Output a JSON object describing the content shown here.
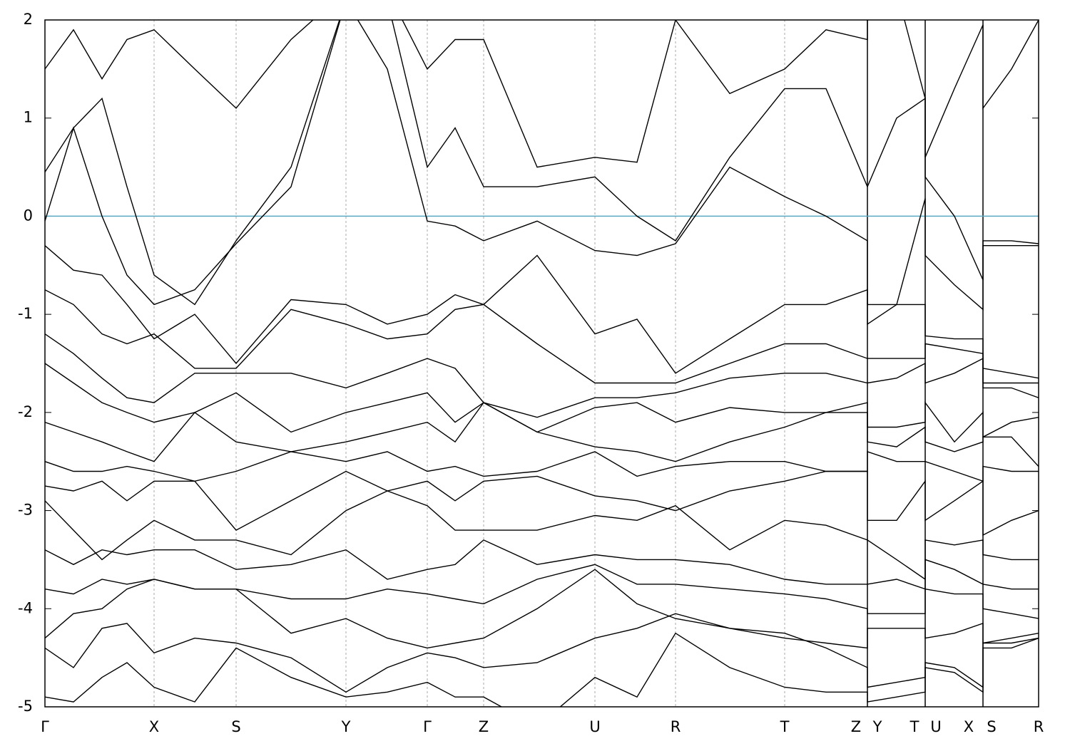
{
  "chart_data": {
    "type": "band-structure",
    "color": "#000000",
    "xlim": [
      0,
      1393
    ],
    "ylim": [
      -5,
      2
    ],
    "yticks": [
      -5,
      -4,
      -3,
      -2,
      -1,
      0,
      1,
      2
    ],
    "xticks": [
      {
        "value": 0,
        "label": "Γ"
      },
      {
        "value": 153,
        "label": "X"
      },
      {
        "value": 268,
        "label": "S"
      },
      {
        "value": 422,
        "label": "Y"
      },
      {
        "value": 536,
        "label": "Γ"
      },
      {
        "value": 615,
        "label": "Z"
      },
      {
        "value": 771,
        "label": "U"
      },
      {
        "value": 884,
        "label": "R"
      },
      {
        "value": 1037,
        "label": "T"
      },
      {
        "value": 1137,
        "label": "Z"
      },
      {
        "value": 1167,
        "label": "Y"
      },
      {
        "value": 1219,
        "label": "T"
      },
      {
        "value": 1249,
        "label": "U"
      },
      {
        "value": 1295,
        "label": "X"
      },
      {
        "value": 1327,
        "label": "S"
      },
      {
        "value": 1393,
        "label": "R"
      }
    ],
    "grid_lines": [
      153,
      268,
      422,
      536,
      615,
      771,
      884,
      1037
    ],
    "breaks": [
      1153,
      1234,
      1315
    ],
    "hline": {
      "value": 0,
      "color": "#5aaac4"
    },
    "x": [
      0,
      40,
      80,
      115,
      153,
      210,
      268,
      345,
      422,
      480,
      536,
      575,
      615,
      690,
      771,
      830,
      884,
      960,
      1037,
      1095,
      1153,
      1153,
      1194,
      1234,
      1234,
      1275,
      1315,
      1315,
      1355,
      1393
    ],
    "series": [
      {
        "values": [
          1.5,
          1.9,
          1.4,
          1.8,
          1.9,
          1.5,
          1.1,
          1.8,
          2.3,
          2.3,
          1.5,
          1.8,
          1.8,
          0.5,
          0.6,
          0.55,
          2.0,
          1.25,
          1.5,
          1.9,
          1.8,
          2.3,
          2.3,
          1.2,
          0.6,
          1.3,
          1.95,
          1.1,
          1.5,
          2.0
        ]
      },
      {
        "values": [
          0.45,
          0.9,
          1.2,
          0.3,
          -0.6,
          -0.9,
          -0.25,
          0.5,
          2.2,
          2.2,
          0.5,
          0.9,
          0.3,
          0.3,
          0.4,
          0.0,
          -0.25,
          0.6,
          1.3,
          1.3,
          0.3,
          0.3,
          1.0,
          1.2,
          0.4,
          0.0,
          -0.65,
          -0.25,
          -0.25,
          -0.28
        ]
      },
      {
        "values": [
          -0.05,
          0.9,
          0.0,
          -0.6,
          -0.9,
          -0.75,
          -0.28,
          0.3,
          2.2,
          1.5,
          -0.05,
          -0.1,
          -0.25,
          -0.05,
          -0.35,
          -0.4,
          -0.28,
          0.5,
          0.2,
          0.0,
          -0.25,
          -0.9,
          -0.9,
          0.18,
          -0.4,
          -0.7,
          -0.95,
          -0.3,
          -0.3,
          -0.3
        ]
      },
      {
        "values": [
          -0.3,
          -0.55,
          -0.6,
          -0.9,
          -1.25,
          -1.0,
          -1.5,
          -0.85,
          -0.9,
          -1.1,
          -1.0,
          -0.8,
          -0.9,
          -0.4,
          -1.2,
          -1.05,
          -1.6,
          -1.25,
          -0.9,
          -0.9,
          -0.75,
          -1.1,
          -0.9,
          -0.9,
          -1.22,
          -1.25,
          -1.25,
          -1.55,
          -1.6,
          -1.65
        ]
      },
      {
        "values": [
          -0.75,
          -0.9,
          -1.2,
          -1.3,
          -1.2,
          -1.55,
          -1.55,
          -0.95,
          -1.1,
          -1.25,
          -1.2,
          -0.95,
          -0.9,
          -1.3,
          -1.7,
          -1.7,
          -1.7,
          -1.5,
          -1.3,
          -1.3,
          -1.45,
          -1.45,
          -1.45,
          -1.45,
          -1.3,
          -1.35,
          -1.4,
          -1.7,
          -1.7,
          -1.7
        ]
      },
      {
        "values": [
          -1.2,
          -1.4,
          -1.65,
          -1.85,
          -1.9,
          -1.6,
          -1.6,
          -1.6,
          -1.75,
          -1.6,
          -1.45,
          -1.55,
          -1.9,
          -2.05,
          -1.85,
          -1.85,
          -1.8,
          -1.65,
          -1.6,
          -1.6,
          -1.7,
          -1.7,
          -1.65,
          -1.5,
          -1.7,
          -1.6,
          -1.45,
          -1.75,
          -1.75,
          -1.85
        ]
      },
      {
        "values": [
          -1.5,
          -1.7,
          -1.9,
          -2.0,
          -2.1,
          -2.0,
          -1.8,
          -2.2,
          -2.0,
          -1.9,
          -1.8,
          -2.1,
          -1.9,
          -2.2,
          -1.95,
          -1.9,
          -2.1,
          -1.95,
          -2.0,
          -2.0,
          -2.0,
          -2.15,
          -2.15,
          -2.1,
          -1.9,
          -2.3,
          -2.0,
          -2.25,
          -2.1,
          -2.05
        ]
      },
      {
        "values": [
          -2.1,
          -2.2,
          -2.3,
          -2.4,
          -2.5,
          -2.0,
          -2.3,
          -2.4,
          -2.3,
          -2.2,
          -2.1,
          -2.3,
          -1.9,
          -2.2,
          -2.35,
          -2.4,
          -2.5,
          -2.3,
          -2.15,
          -2.0,
          -1.9,
          -2.3,
          -2.35,
          -2.15,
          -2.3,
          -2.4,
          -2.3,
          -2.25,
          -2.25,
          -2.55
        ]
      },
      {
        "values": [
          -2.5,
          -2.6,
          -2.6,
          -2.55,
          -2.6,
          -2.7,
          -2.6,
          -2.4,
          -2.5,
          -2.4,
          -2.6,
          -2.55,
          -2.65,
          -2.6,
          -2.4,
          -2.65,
          -2.55,
          -2.5,
          -2.5,
          -2.6,
          -2.6,
          -2.4,
          -2.5,
          -2.5,
          -2.5,
          -2.6,
          -2.7,
          -2.55,
          -2.6,
          -2.6
        ]
      },
      {
        "values": [
          -2.75,
          -2.8,
          -2.7,
          -2.9,
          -2.7,
          -2.7,
          -3.2,
          -2.9,
          -2.6,
          -2.8,
          -2.7,
          -2.9,
          -2.7,
          -2.65,
          -2.85,
          -2.9,
          -3.0,
          -2.8,
          -2.7,
          -2.6,
          -2.6,
          -3.1,
          -3.1,
          -2.7,
          -3.1,
          -2.9,
          -2.7,
          -3.25,
          -3.1,
          -3.0
        ]
      },
      {
        "values": [
          -2.9,
          -3.2,
          -3.5,
          -3.3,
          -3.1,
          -3.3,
          -3.3,
          -3.45,
          -3.0,
          -2.8,
          -2.95,
          -3.2,
          -3.2,
          -3.2,
          -3.05,
          -3.1,
          -2.95,
          -3.4,
          -3.1,
          -3.15,
          -3.3,
          -3.3,
          -3.5,
          -3.7,
          -3.3,
          -3.35,
          -3.3,
          -3.45,
          -3.5,
          -3.5
        ]
      },
      {
        "values": [
          -3.4,
          -3.55,
          -3.4,
          -3.45,
          -3.4,
          -3.4,
          -3.6,
          -3.55,
          -3.4,
          -3.7,
          -3.6,
          -3.55,
          -3.3,
          -3.55,
          -3.45,
          -3.5,
          -3.5,
          -3.55,
          -3.7,
          -3.75,
          -3.75,
          -3.75,
          -3.7,
          -3.8,
          -3.5,
          -3.6,
          -3.75,
          -3.75,
          -3.8,
          -3.8
        ]
      },
      {
        "values": [
          -3.8,
          -3.85,
          -3.7,
          -3.75,
          -3.7,
          -3.8,
          -3.8,
          -3.9,
          -3.9,
          -3.8,
          -3.85,
          -3.9,
          -3.95,
          -3.7,
          -3.55,
          -3.75,
          -3.75,
          -3.8,
          -3.85,
          -3.9,
          -4.0,
          -4.05,
          -4.05,
          -4.05,
          -3.8,
          -3.85,
          -3.85,
          -4.0,
          -4.05,
          -4.1
        ]
      },
      {
        "values": [
          -4.3,
          -4.05,
          -4.0,
          -3.8,
          -3.7,
          -3.8,
          -3.8,
          -4.25,
          -4.1,
          -4.3,
          -4.4,
          -4.35,
          -4.3,
          -4.0,
          -3.6,
          -3.95,
          -4.1,
          -4.2,
          -4.3,
          -4.35,
          -4.4,
          -4.2,
          -4.2,
          -4.2,
          -4.3,
          -4.25,
          -4.15,
          -4.35,
          -4.3,
          -4.25
        ]
      },
      {
        "values": [
          -4.4,
          -4.6,
          -4.2,
          -4.15,
          -4.45,
          -4.3,
          -4.35,
          -4.5,
          -4.85,
          -4.6,
          -4.45,
          -4.5,
          -4.6,
          -4.55,
          -4.3,
          -4.2,
          -4.05,
          -4.2,
          -4.25,
          -4.4,
          -4.6,
          -4.8,
          -4.75,
          -4.7,
          -4.55,
          -4.6,
          -4.8,
          -4.35,
          -4.35,
          -4.3
        ]
      },
      {
        "values": [
          -4.9,
          -4.95,
          -4.7,
          -4.55,
          -4.8,
          -4.95,
          -4.4,
          -4.7,
          -4.9,
          -4.85,
          -4.75,
          -4.9,
          -4.9,
          -5.2,
          -4.7,
          -4.9,
          -4.25,
          -4.6,
          -4.8,
          -4.85,
          -4.85,
          -4.95,
          -4.9,
          -4.85,
          -4.6,
          -4.65,
          -4.85,
          -4.4,
          -4.4,
          -4.3
        ]
      }
    ]
  }
}
